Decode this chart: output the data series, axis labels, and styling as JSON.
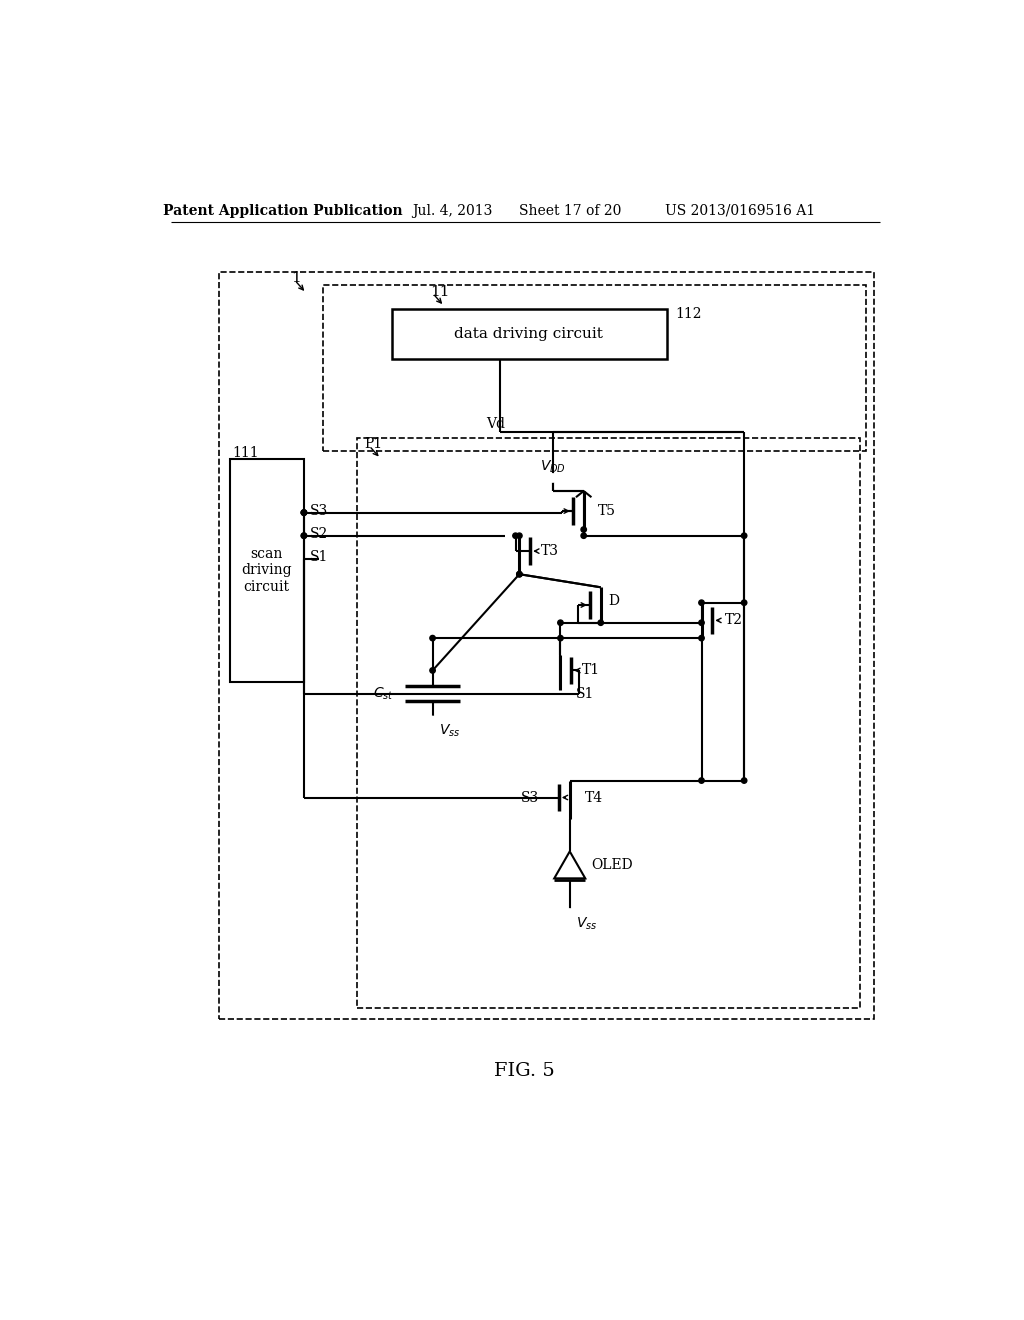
{
  "bg_color": "#ffffff",
  "line_color": "#000000",
  "header_text": "Patent Application Publication",
  "header_date": "Jul. 4, 2013",
  "header_sheet": "Sheet 17 of 20",
  "header_patent": "US 2013/0169516 A1",
  "fig_label": "FIG. 5"
}
